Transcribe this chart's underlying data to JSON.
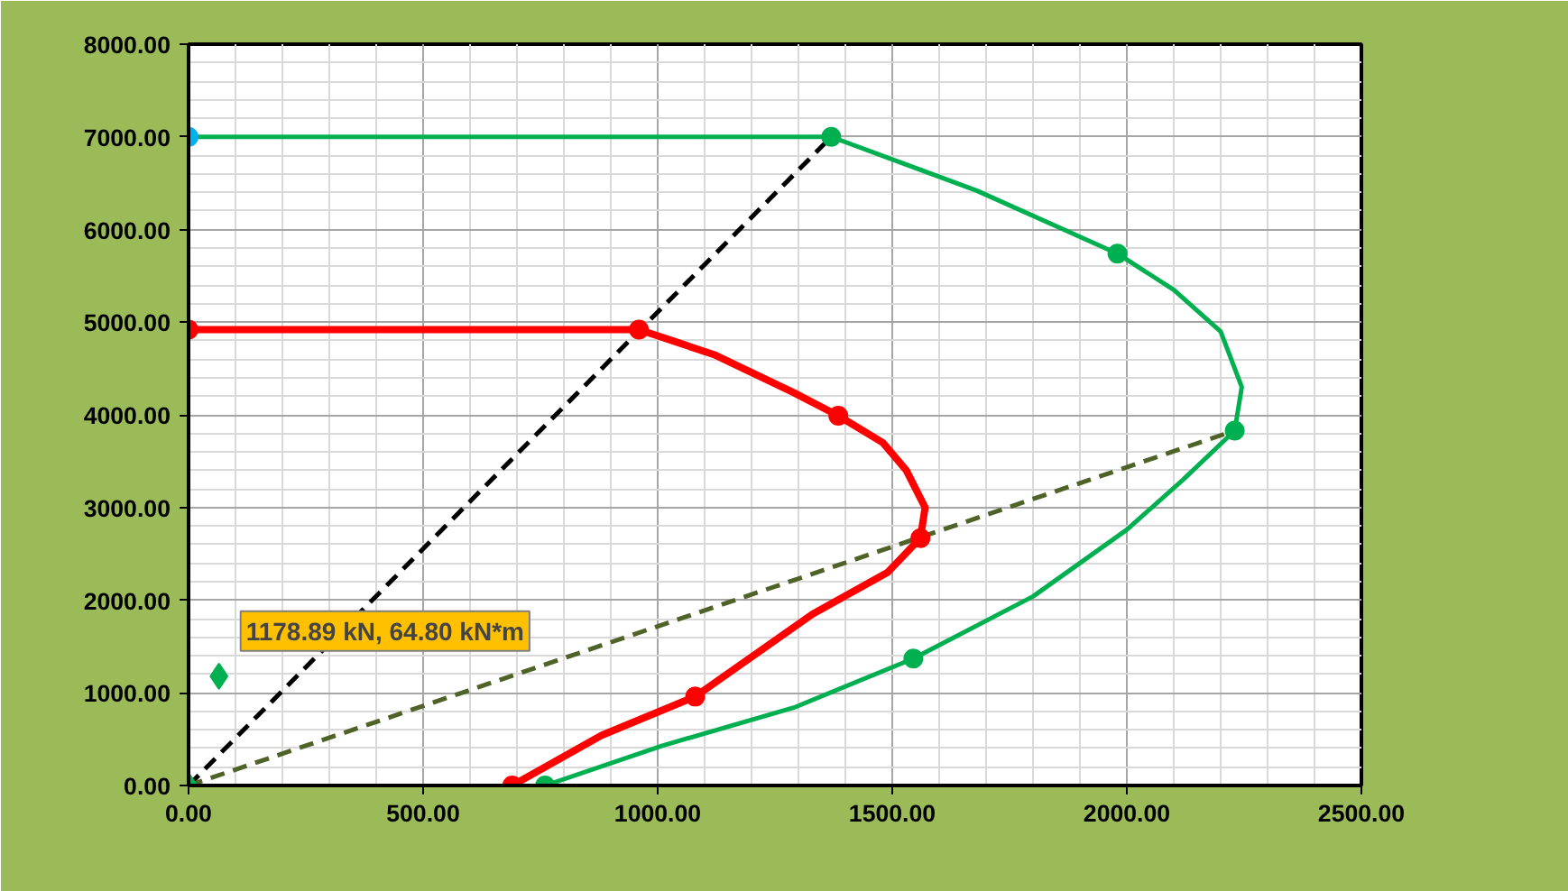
{
  "chart_data": {
    "type": "line",
    "xlim": [
      0,
      2500
    ],
    "ylim": [
      0,
      8000
    ],
    "xticks": [
      {
        "value": 0,
        "label": "0.00"
      },
      {
        "value": 500,
        "label": "500.00"
      },
      {
        "value": 1000,
        "label": "1000.00"
      },
      {
        "value": 1500,
        "label": "1500.00"
      },
      {
        "value": 2000,
        "label": "2000.00"
      },
      {
        "value": 2500,
        "label": "2500.00"
      }
    ],
    "yticks": [
      {
        "value": 0,
        "label": "0.00"
      },
      {
        "value": 1000,
        "label": "1000.00"
      },
      {
        "value": 2000,
        "label": "2000.00"
      },
      {
        "value": 3000,
        "label": "3000.00"
      },
      {
        "value": 4000,
        "label": "4000.00"
      },
      {
        "value": 5000,
        "label": "5000.00"
      },
      {
        "value": 6000,
        "label": "6000.00"
      },
      {
        "value": 7000,
        "label": "7000.00"
      },
      {
        "value": 8000,
        "label": "8000.00"
      }
    ],
    "grid": true,
    "series": [
      {
        "color": "#000000",
        "line_style": "dashed",
        "x": [
          0,
          1370
        ],
        "values": [
          0,
          7000
        ]
      },
      {
        "color": "#4f6228",
        "line_style": "dashed",
        "x": [
          0,
          2230
        ],
        "values": [
          0,
          3830
        ]
      },
      {
        "color": "#00b050",
        "line_style": "solid",
        "x": [
          0,
          1370,
          1680,
          1980,
          2100,
          2200,
          2245,
          2230,
          2120,
          2000,
          1800,
          1545,
          1290,
          1010,
          760
        ],
        "values": [
          7000,
          7000,
          6420,
          5740,
          5350,
          4900,
          4300,
          3830,
          3300,
          2760,
          2040,
          1370,
          840,
          430,
          0
        ]
      },
      {
        "color": "#ff0000",
        "line_style": "solid",
        "x": [
          0,
          960,
          1120,
          1290,
          1385,
          1480,
          1530,
          1570,
          1560,
          1490,
          1330,
          1080,
          880,
          690
        ],
        "values": [
          4920,
          4920,
          4650,
          4240,
          3990,
          3700,
          3400,
          3000,
          2670,
          2300,
          1850,
          960,
          540,
          0
        ]
      },
      {
        "type": "scatter",
        "color": "#00b050",
        "marker": "circle",
        "x": [
          1370,
          1980,
          2230,
          1545,
          760
        ],
        "values": [
          7000,
          5740,
          3830,
          1370,
          0
        ]
      },
      {
        "type": "scatter",
        "color": "#ff0000",
        "marker": "circle",
        "x": [
          0,
          960,
          1385,
          1560,
          1080,
          690
        ],
        "values": [
          4920,
          4920,
          3990,
          2670,
          960,
          0
        ]
      },
      {
        "type": "scatter",
        "color": "#00b0f0",
        "marker": "circle",
        "x": [
          0
        ],
        "values": [
          7000
        ]
      },
      {
        "type": "scatter",
        "color": "#00b050",
        "marker": "diamond",
        "x": [
          0,
          64.8
        ],
        "values": [
          0,
          1178.89
        ]
      }
    ],
    "annotations": [
      {
        "text": "1178.89 kN, 64.80 kN*m",
        "x": 64.8,
        "y": 1178.89
      }
    ]
  }
}
